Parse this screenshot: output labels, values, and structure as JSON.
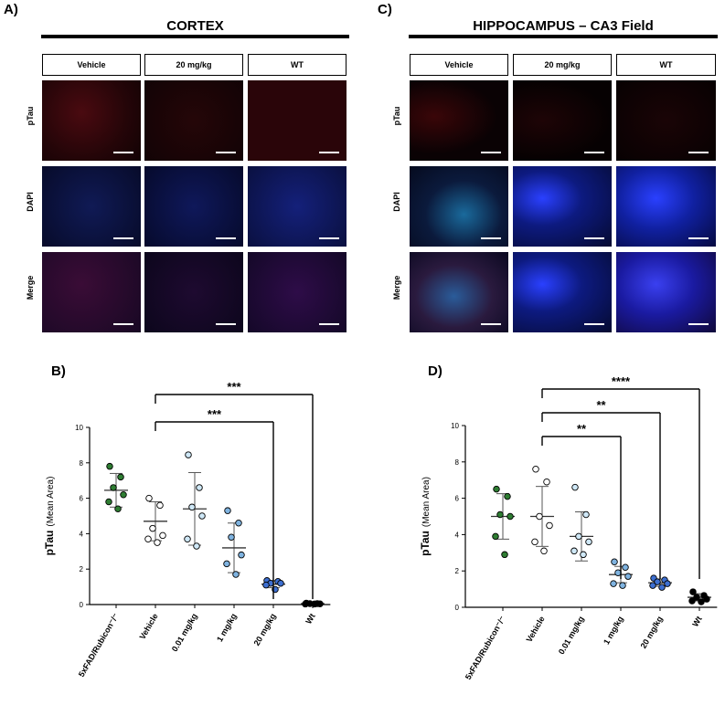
{
  "panels": {
    "A": {
      "letter": "A)",
      "title": "CORTEX"
    },
    "C": {
      "letter": "C)",
      "title": "HIPPOCAMPUS – CA3 Field"
    },
    "B": {
      "letter": "B)"
    },
    "D": {
      "letter": "D)"
    }
  },
  "micrograph_columns": [
    "Vehicle",
    "20 mg/kg",
    "WT"
  ],
  "micrograph_rows": [
    "pTau",
    "DAPI",
    "Merge"
  ],
  "colors": {
    "pTau_stain": "#d42a2a",
    "dapi_stain": "#2a4dff",
    "ctrl_marker": "#2e7d32",
    "vehicle_marker": "#ffffff",
    "low_dose_marker": "#cfe8f7",
    "mid_dose_marker": "#7fb3e0",
    "high_dose_marker": "#3d6fd1",
    "wt_marker": "#000000"
  },
  "chart_data": [
    {
      "panel": "B",
      "type": "scatter",
      "ylabel_bold": "pTau",
      "ylabel_rest": "(Mean Area)",
      "ylim": [
        0,
        10
      ],
      "yticks": [
        "0",
        "2",
        "4",
        "6",
        "8",
        "10"
      ],
      "categories": [
        "5xFAD/Rubicon⁻/⁻",
        "Vehicle",
        "0.01 mg/kg",
        "1 mg/kg",
        "20 mg/kg",
        "Wt"
      ],
      "series": [
        {
          "values": [
            7.8,
            7.2,
            6.6,
            6.2,
            5.8,
            5.4
          ],
          "mean": 6.45,
          "sd": 0.95
        },
        {
          "values": [
            6.0,
            5.6,
            4.3,
            3.9,
            3.7,
            3.5
          ],
          "mean": 4.7,
          "sd": 1.1
        },
        {
          "values": [
            8.45,
            6.6,
            5.5,
            5.0,
            3.7,
            3.3
          ],
          "mean": 5.4,
          "sd": 2.05
        },
        {
          "values": [
            5.3,
            4.6,
            3.8,
            2.8,
            2.3,
            1.7
          ],
          "mean": 3.2,
          "sd": 1.4
        },
        {
          "values": [
            1.35,
            1.3,
            1.2,
            1.2,
            1.1,
            0.85
          ],
          "mean": 1.15,
          "sd": 0.2
        },
        {
          "values": [
            0.08,
            0.05,
            0.05,
            0.04,
            0.03,
            0.03
          ],
          "mean": 0.05,
          "sd": 0.02
        }
      ],
      "significance": [
        {
          "from": 1,
          "to": 5,
          "label": "***"
        },
        {
          "from": 1,
          "to": 4,
          "label": "***"
        }
      ]
    },
    {
      "panel": "D",
      "type": "scatter",
      "ylabel_bold": "pTau",
      "ylabel_rest": "(Mean Area)",
      "ylim": [
        0,
        10
      ],
      "yticks": [
        "0",
        "2",
        "4",
        "6",
        "8",
        "10"
      ],
      "categories": [
        "5xFAD/Rubicon⁻/⁻",
        "Vehicle",
        "0.01 mg/kg",
        "1 mg/kg",
        "20 mg/kg",
        "Wt"
      ],
      "series": [
        {
          "values": [
            6.5,
            6.1,
            5.1,
            5.0,
            3.9,
            2.9
          ],
          "mean": 5.0,
          "sd": 1.25
        },
        {
          "values": [
            7.6,
            6.9,
            5.0,
            4.5,
            3.6,
            3.1
          ],
          "mean": 5.0,
          "sd": 1.65
        },
        {
          "values": [
            6.6,
            5.1,
            3.9,
            3.6,
            3.1,
            2.9
          ],
          "mean": 3.9,
          "sd": 1.35
        },
        {
          "values": [
            2.5,
            2.2,
            1.9,
            1.7,
            1.3,
            1.2
          ],
          "mean": 1.8,
          "sd": 0.45
        },
        {
          "values": [
            1.6,
            1.5,
            1.4,
            1.3,
            1.2,
            1.1
          ],
          "mean": 1.35,
          "sd": 0.2
        },
        {
          "values": [
            0.85,
            0.65,
            0.55,
            0.45,
            0.35,
            0.3
          ],
          "mean": 0.55,
          "sd": 0.2
        }
      ],
      "significance": [
        {
          "from": 1,
          "to": 5,
          "label": "****"
        },
        {
          "from": 1,
          "to": 4,
          "label": "**"
        },
        {
          "from": 1,
          "to": 3,
          "label": "**"
        }
      ]
    }
  ]
}
